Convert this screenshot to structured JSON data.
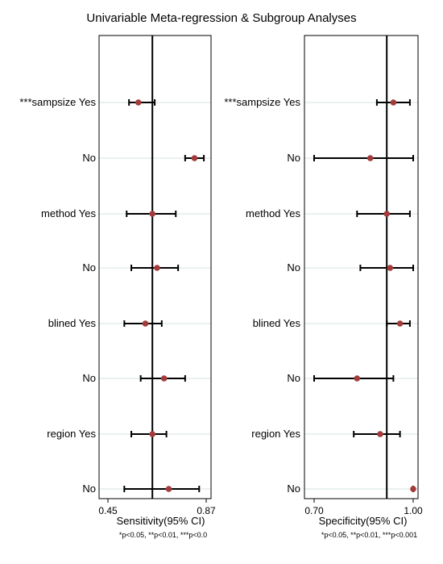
{
  "chart_data": {
    "title": "Univariable Meta-regression & Subgroup Analyses",
    "type": "scatter",
    "row_labels": [
      "***sampsize Yes",
      "No",
      "method Yes",
      "No",
      "blined Yes",
      "No",
      "region Yes",
      "No"
    ],
    "panels": [
      {
        "name": "sensitivity",
        "xlabel": "Sensitivity(95% CI)",
        "xticks": [
          "0.45",
          "0.87"
        ],
        "xlim": [
          0.45,
          0.87
        ],
        "reference_line": 0.64,
        "footnote": "*p<0.05, **p<0.01, ***p<0.0",
        "estimates": [
          0.58,
          0.82,
          0.64,
          0.66,
          0.61,
          0.69,
          0.64,
          0.71
        ],
        "ci_low": [
          0.54,
          0.78,
          0.53,
          0.55,
          0.52,
          0.59,
          0.55,
          0.52
        ],
        "ci_high": [
          0.65,
          0.86,
          0.74,
          0.75,
          0.68,
          0.78,
          0.7,
          0.84
        ]
      },
      {
        "name": "specificity",
        "xlabel": "Specificity(95% CI)",
        "xticks": [
          "0.70",
          "1.00"
        ],
        "xlim": [
          0.7,
          1.0
        ],
        "reference_line": 0.92,
        "footnote": "*p<0.05, **p<0.01, ***p<0.001",
        "estimates": [
          0.94,
          0.87,
          0.92,
          0.93,
          0.96,
          0.83,
          0.9,
          1.0
        ],
        "ci_low": [
          0.89,
          0.7,
          0.83,
          0.84,
          0.92,
          0.7,
          0.82,
          1.0
        ],
        "ci_high": [
          0.99,
          1.0,
          0.99,
          1.0,
          0.99,
          0.94,
          0.96,
          1.0
        ]
      }
    ],
    "colors": {
      "marker": "#A33B3B",
      "bar": "#000000",
      "grid": "#E4EEEC",
      "frame": "#000000"
    }
  }
}
